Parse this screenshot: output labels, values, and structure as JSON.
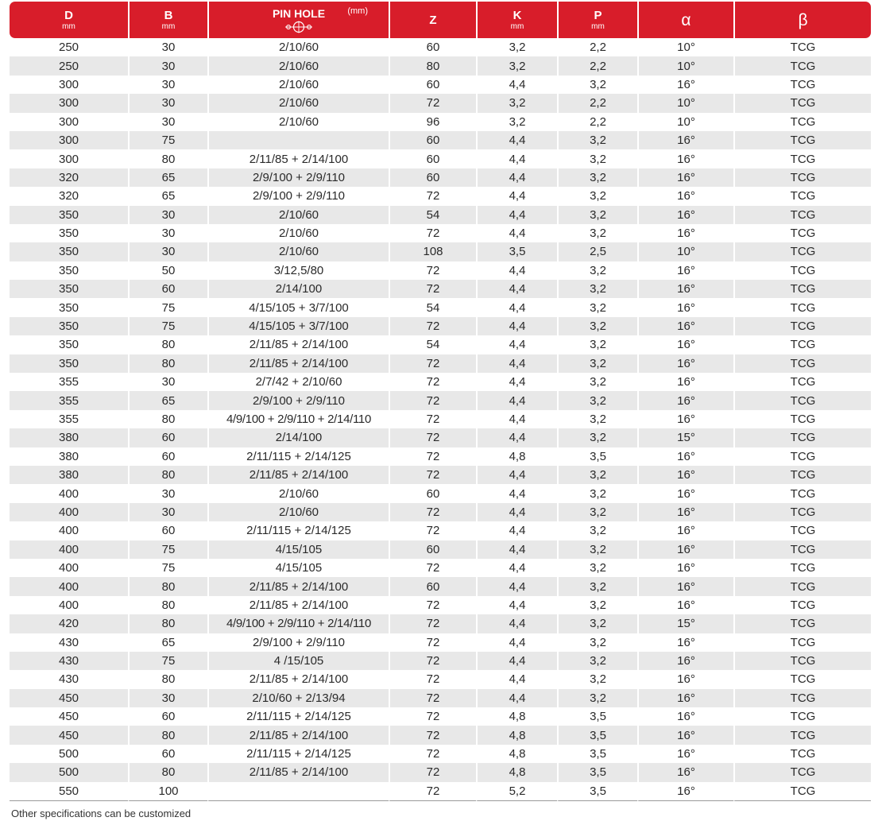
{
  "colors": {
    "header_bg": "#d81d2a",
    "header_text": "#ffffff",
    "stripe": "#e8e8e8"
  },
  "headers": {
    "d": "D",
    "d_unit": "mm",
    "b": "B",
    "b_unit": "mm",
    "pin_hole": "PIN HOLE",
    "pin_hole_unit": "(mm)",
    "pin_hole_icon": "pin-hole-diagram-icon",
    "z": "Z",
    "k": "K",
    "k_unit": "mm",
    "p": "P",
    "p_unit": "mm",
    "alpha": "α",
    "beta": "β"
  },
  "rows": [
    [
      "250",
      "30",
      "2/10/60",
      "60",
      "3,2",
      "2,2",
      "10°",
      "TCG"
    ],
    [
      "250",
      "30",
      "2/10/60",
      "80",
      "3,2",
      "2,2",
      "10°",
      "TCG"
    ],
    [
      "300",
      "30",
      "2/10/60",
      "60",
      "4,4",
      "3,2",
      "16°",
      "TCG"
    ],
    [
      "300",
      "30",
      "2/10/60",
      "72",
      "3,2",
      "2,2",
      "10°",
      "TCG"
    ],
    [
      "300",
      "30",
      "2/10/60",
      "96",
      "3,2",
      "2,2",
      "10°",
      "TCG"
    ],
    [
      "300",
      "75",
      "",
      "60",
      "4,4",
      "3,2",
      "16°",
      "TCG"
    ],
    [
      "300",
      "80",
      "2/11/85 + 2/14/100",
      "60",
      "4,4",
      "3,2",
      "16°",
      "TCG"
    ],
    [
      "320",
      "65",
      "2/9/100 + 2/9/110",
      "60",
      "4,4",
      "3,2",
      "16°",
      "TCG"
    ],
    [
      "320",
      "65",
      "2/9/100 + 2/9/110",
      "72",
      "4,4",
      "3,2",
      "16°",
      "TCG"
    ],
    [
      "350",
      "30",
      "2/10/60",
      "54",
      "4,4",
      "3,2",
      "16°",
      "TCG"
    ],
    [
      "350",
      "30",
      "2/10/60",
      "72",
      "4,4",
      "3,2",
      "16°",
      "TCG"
    ],
    [
      "350",
      "30",
      "2/10/60",
      "108",
      "3,5",
      "2,5",
      "10°",
      "TCG"
    ],
    [
      "350",
      "50",
      "3/12,5/80",
      "72",
      "4,4",
      "3,2",
      "16°",
      "TCG"
    ],
    [
      "350",
      "60",
      "2/14/100",
      "72",
      "4,4",
      "3,2",
      "16°",
      "TCG"
    ],
    [
      "350",
      "75",
      "4/15/105 + 3/7/100",
      "54",
      "4,4",
      "3,2",
      "16°",
      "TCG"
    ],
    [
      "350",
      "75",
      "4/15/105 + 3/7/100",
      "72",
      "4,4",
      "3,2",
      "16°",
      "TCG"
    ],
    [
      "350",
      "80",
      "2/11/85 + 2/14/100",
      "54",
      "4,4",
      "3,2",
      "16°",
      "TCG"
    ],
    [
      "350",
      "80",
      "2/11/85 + 2/14/100",
      "72",
      "4,4",
      "3,2",
      "16°",
      "TCG"
    ],
    [
      "355",
      "30",
      "2/7/42 + 2/10/60",
      "72",
      "4,4",
      "3,2",
      "16°",
      "TCG"
    ],
    [
      "355",
      "65",
      "2/9/100 + 2/9/110",
      "72",
      "4,4",
      "3,2",
      "16°",
      "TCG"
    ],
    [
      "355",
      "80",
      "4/9/100 + 2/9/110 + 2/14/110",
      "72",
      "4,4",
      "3,2",
      "16°",
      "TCG"
    ],
    [
      "380",
      "60",
      "2/14/100",
      "72",
      "4,4",
      "3,2",
      "15°",
      "TCG"
    ],
    [
      "380",
      "60",
      "2/11/115 + 2/14/125",
      "72",
      "4,8",
      "3,5",
      "16°",
      "TCG"
    ],
    [
      "380",
      "80",
      "2/11/85 + 2/14/100",
      "72",
      "4,4",
      "3,2",
      "16°",
      "TCG"
    ],
    [
      "400",
      "30",
      "2/10/60",
      "60",
      "4,4",
      "3,2",
      "16°",
      "TCG"
    ],
    [
      "400",
      "30",
      "2/10/60",
      "72",
      "4,4",
      "3,2",
      "16°",
      "TCG"
    ],
    [
      "400",
      "60",
      "2/11/115 + 2/14/125",
      "72",
      "4,4",
      "3,2",
      "16°",
      "TCG"
    ],
    [
      "400",
      "75",
      "4/15/105",
      "60",
      "4,4",
      "3,2",
      "16°",
      "TCG"
    ],
    [
      "400",
      "75",
      "4/15/105",
      "72",
      "4,4",
      "3,2",
      "16°",
      "TCG"
    ],
    [
      "400",
      "80",
      "2/11/85 + 2/14/100",
      "60",
      "4,4",
      "3,2",
      "16°",
      "TCG"
    ],
    [
      "400",
      "80",
      "2/11/85 + 2/14/100",
      "72",
      "4,4",
      "3,2",
      "16°",
      "TCG"
    ],
    [
      "420",
      "80",
      "4/9/100 + 2/9/110 + 2/14/110",
      "72",
      "4,4",
      "3,2",
      "15°",
      "TCG"
    ],
    [
      "430",
      "65",
      "2/9/100 + 2/9/110",
      "72",
      "4,4",
      "3,2",
      "16°",
      "TCG"
    ],
    [
      "430",
      "75",
      "4 /15/105",
      "72",
      "4,4",
      "3,2",
      "16°",
      "TCG"
    ],
    [
      "430",
      "80",
      "2/11/85 + 2/14/100",
      "72",
      "4,4",
      "3,2",
      "16°",
      "TCG"
    ],
    [
      "450",
      "30",
      "2/10/60 + 2/13/94",
      "72",
      "4,4",
      "3,2",
      "16°",
      "TCG"
    ],
    [
      "450",
      "60",
      "2/11/115 + 2/14/125",
      "72",
      "4,8",
      "3,5",
      "16°",
      "TCG"
    ],
    [
      "450",
      "80",
      "2/11/85 + 2/14/100",
      "72",
      "4,8",
      "3,5",
      "16°",
      "TCG"
    ],
    [
      "500",
      "60",
      "2/11/115 + 2/14/125",
      "72",
      "4,8",
      "3,5",
      "16°",
      "TCG"
    ],
    [
      "500",
      "80",
      "2/11/85 + 2/14/100",
      "72",
      "4,8",
      "3,5",
      "16°",
      "TCG"
    ],
    [
      "550",
      "100",
      "",
      "72",
      "5,2",
      "3,5",
      "16°",
      "TCG"
    ]
  ],
  "footnote": "Other specifications can be customized"
}
